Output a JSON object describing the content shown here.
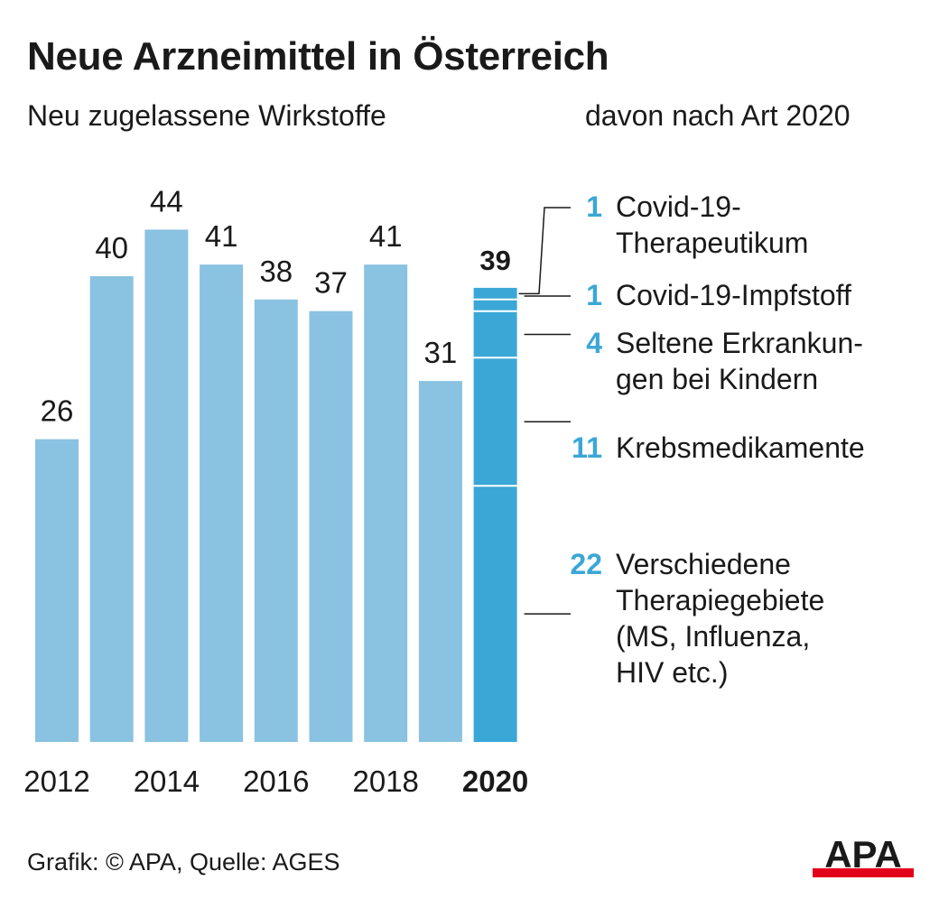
{
  "title": "Neue Arzneimittel in Österreich",
  "subtitle_left": "Neu zugelassene Wirkstoffe",
  "subtitle_right": "davon nach Art 2020",
  "footer": "Grafik: © APA, Quelle: AGES",
  "logo": "APA",
  "colors": {
    "bar": "#8ac2e1",
    "highlight": "#3ba7d6",
    "number_accent": "#3ba7d6",
    "logo_red": "#e3001b",
    "text": "#1a1a1a"
  },
  "chart_data": {
    "type": "bar",
    "years": [
      "2012",
      "2013",
      "2014",
      "2015",
      "2016",
      "2017",
      "2018",
      "2019",
      "2020"
    ],
    "tick_labels": [
      "2012",
      "2014",
      "2016",
      "2018",
      "2020"
    ],
    "values": [
      26,
      40,
      44,
      41,
      38,
      37,
      41,
      31,
      39
    ],
    "highlight_year": "2020",
    "breakdown_2020": [
      {
        "value": 22,
        "number": "22",
        "label_lines": [
          "Verschiedene",
          "Therapiegebiete",
          "(MS, Influenza,",
          "HIV etc.)"
        ]
      },
      {
        "value": 11,
        "number": "11",
        "label_lines": [
          "Krebsmedikamente"
        ]
      },
      {
        "value": 4,
        "number": "4",
        "label_lines": [
          "Seltene Erkrankun-",
          "gen bei Kindern"
        ]
      },
      {
        "value": 1,
        "number": "1",
        "label_lines": [
          "Covid-19-Impfstoff"
        ]
      },
      {
        "value": 1,
        "number": "1",
        "label_lines": [
          "Covid-19-",
          "Therapeutikum"
        ]
      }
    ]
  }
}
